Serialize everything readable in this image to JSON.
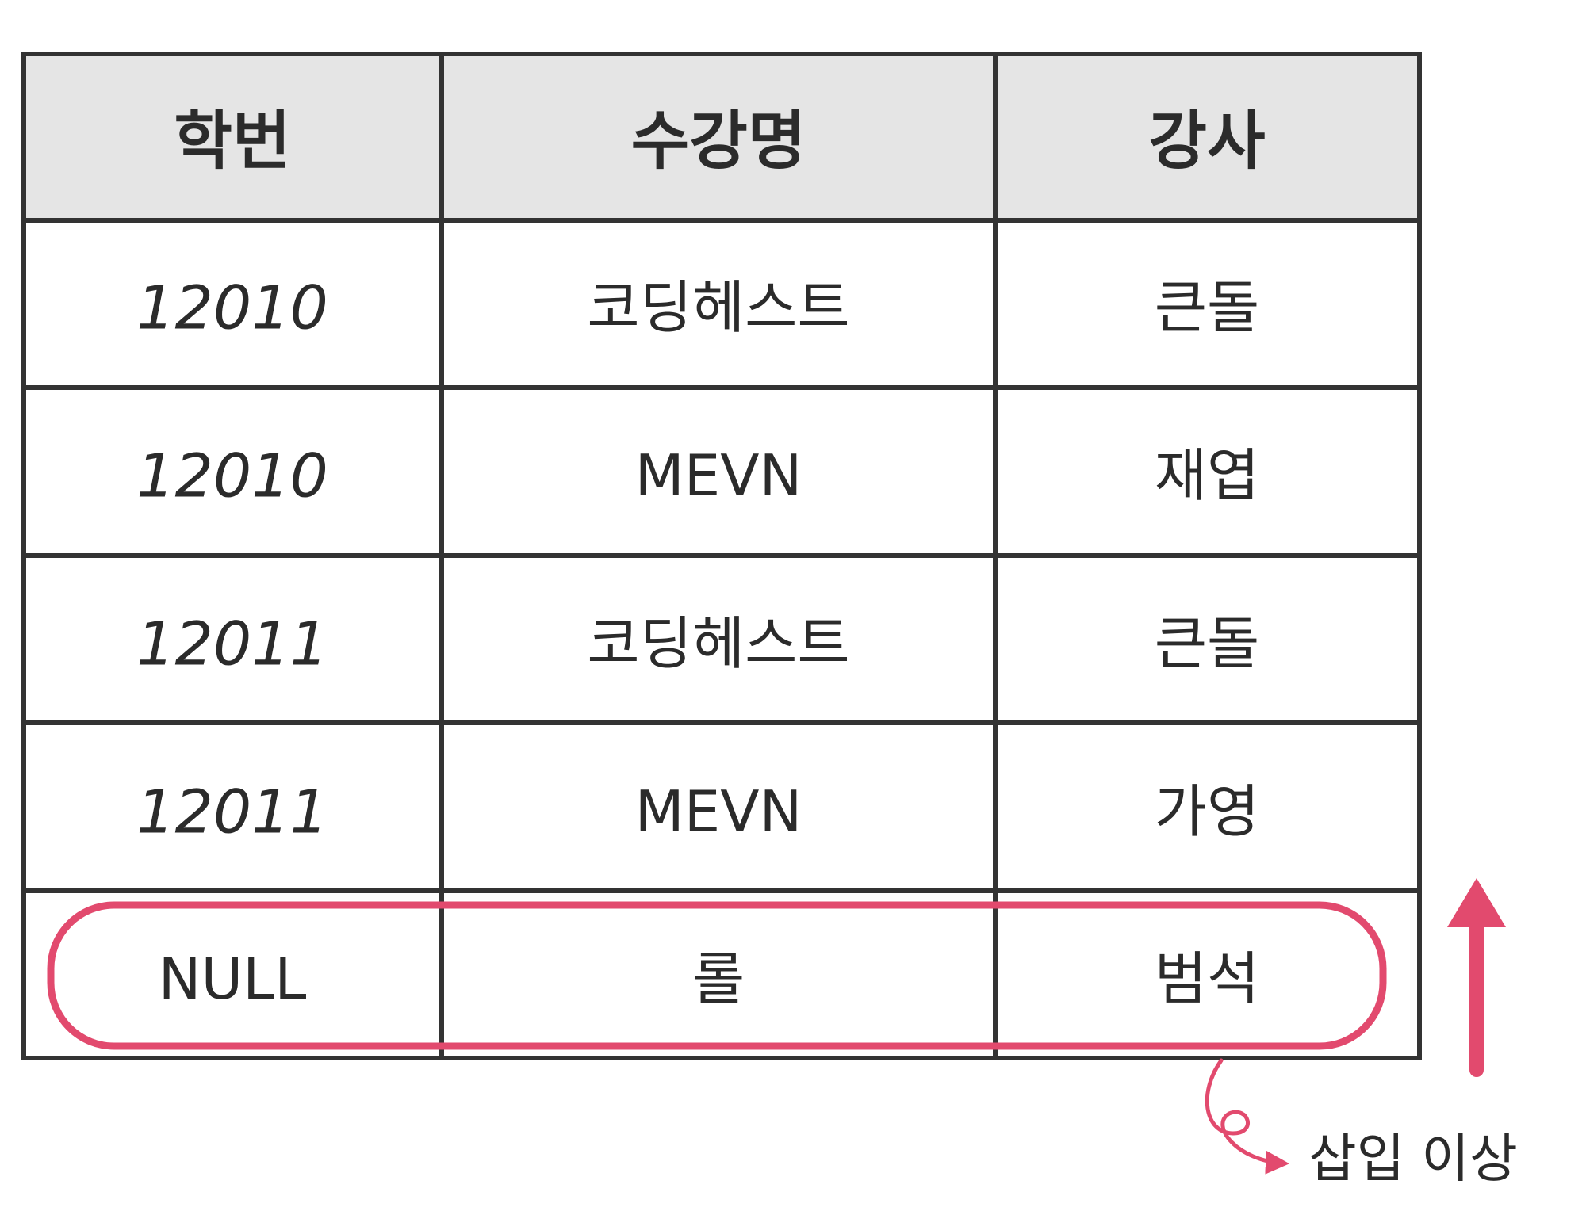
{
  "table": {
    "headers": [
      "학번",
      "수강명",
      "강사"
    ],
    "rows": [
      [
        "12010",
        "코딩헤스트",
        "큰돌"
      ],
      [
        "12010",
        "MEVN",
        "재엽"
      ],
      [
        "12011",
        "코딩헤스트",
        "큰돌"
      ],
      [
        "12011",
        "MEVN",
        "가영"
      ],
      [
        "NULL",
        "롤",
        "범석"
      ]
    ],
    "highlighted_row": 4
  },
  "annotation": {
    "label": "삽입 이상"
  },
  "colors": {
    "header_bg": "#e5e5e5",
    "grid": "#333333",
    "highlight": "#e24a6e",
    "text": "#2b2b2b"
  }
}
